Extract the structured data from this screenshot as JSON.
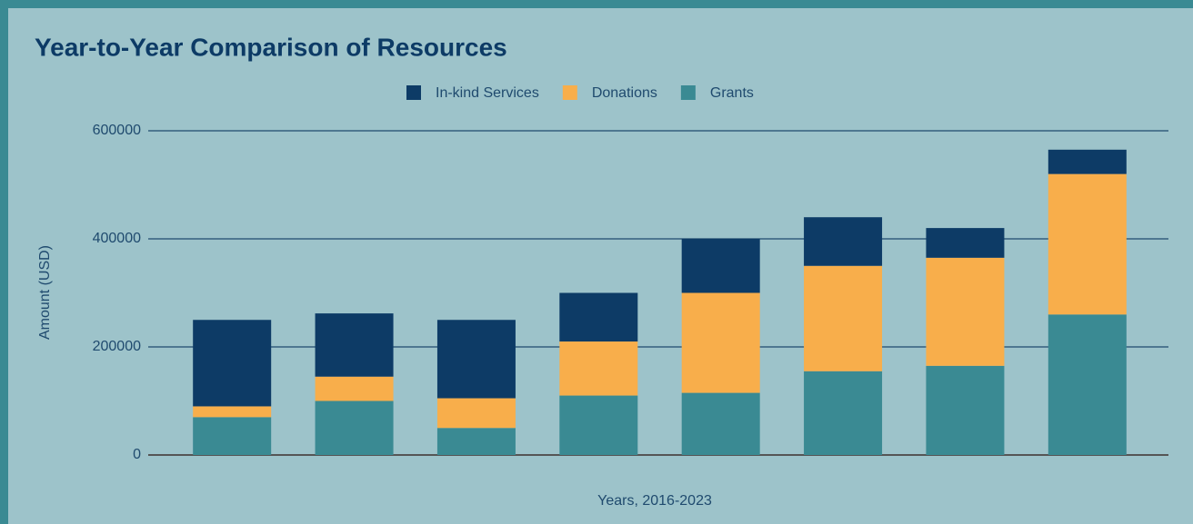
{
  "chart_data": {
    "type": "stacked_bar",
    "title": "Year-to-Year Comparison of Resources",
    "x_label": "Years, 2016-2023",
    "y_label": "Amount (USD)",
    "categories": [
      null,
      null,
      null,
      null,
      null,
      null,
      null,
      null
    ],
    "series": [
      {
        "name": "In-kind Services",
        "color": "#0d3b66",
        "values": [
          160000,
          117000,
          145000,
          90000,
          100000,
          90000,
          55000,
          45000
        ]
      },
      {
        "name": "Donations",
        "color": "#f8ae4b",
        "values": [
          20000,
          45000,
          55000,
          100000,
          185000,
          195000,
          200000,
          260000
        ]
      },
      {
        "name": "Grants",
        "color": "#3a8a93",
        "values": [
          70000,
          100000,
          50000,
          110000,
          115000,
          155000,
          165000,
          260000
        ]
      }
    ],
    "ylim": [
      0,
      600000
    ],
    "yticks": [
      0,
      200000,
      400000,
      600000
    ],
    "grid": true,
    "legend": "top"
  }
}
